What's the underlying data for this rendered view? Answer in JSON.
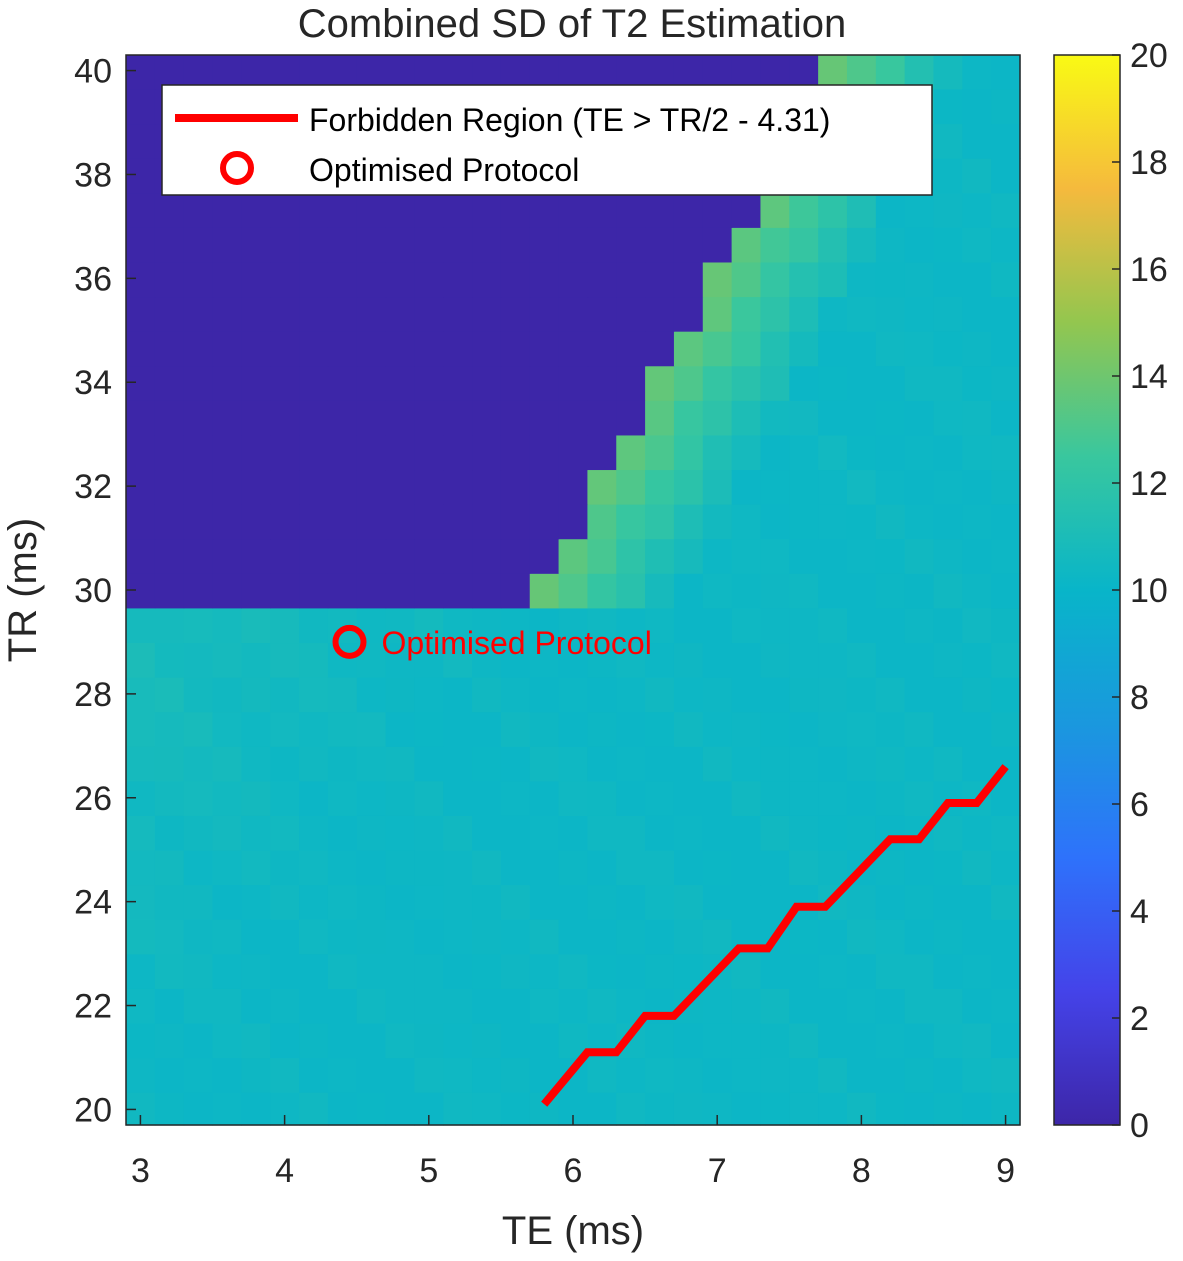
{
  "chart_data": {
    "type": "heatmap",
    "title": "Combined SD of T2 Estimation",
    "xlabel": "TE (ms)",
    "ylabel": "TR (ms)",
    "xlim": [
      2.9,
      9.1
    ],
    "ylim": [
      19.7,
      40.3
    ],
    "te_range": [
      3.0,
      9.0
    ],
    "te_step": 0.2,
    "tr_range": [
      20,
      40
    ],
    "tr_step": 0.666,
    "clim": [
      0,
      20
    ],
    "x_ticks": [
      3,
      4,
      5,
      6,
      7,
      8,
      9
    ],
    "y_ticks": [
      20,
      22,
      24,
      26,
      28,
      30,
      32,
      34,
      36,
      38,
      40
    ],
    "colorbar_ticks": [
      0,
      2,
      4,
      6,
      8,
      10,
      12,
      14,
      16,
      18,
      20
    ],
    "colormap": "parula",
    "forbidden_region": {
      "name": "Forbidden Region (TE > TR/2 - 4.31)",
      "color": "#ff0000",
      "points": [
        [
          5.8,
          20.1
        ],
        [
          6.1,
          21.1
        ],
        [
          6.3,
          21.1
        ],
        [
          6.5,
          21.8
        ],
        [
          6.7,
          21.8
        ],
        [
          7.15,
          23.1
        ],
        [
          7.35,
          23.1
        ],
        [
          7.55,
          23.9
        ],
        [
          7.75,
          23.9
        ],
        [
          8.2,
          25.2
        ],
        [
          8.4,
          25.2
        ],
        [
          8.6,
          25.9
        ],
        [
          8.8,
          25.9
        ],
        [
          9.0,
          26.6
        ]
      ]
    },
    "optimised_protocol": {
      "name": "Optimised Protocol",
      "label": "Optimised Protocol",
      "te": 4.45,
      "tr": 29.0,
      "color": "#ff0000"
    },
    "legend_position": "top",
    "grid": false
  }
}
